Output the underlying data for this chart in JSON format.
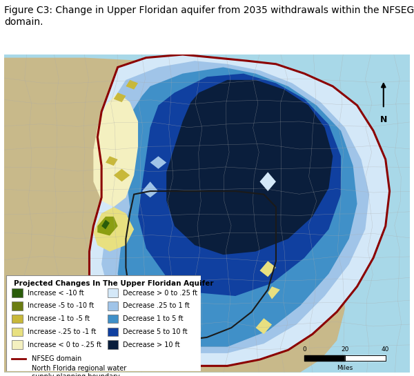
{
  "title": "Figure C3: Change in Upper Floridan aquifer from 2035 withdrawals within the NFSEG\ndomain.",
  "title_fontsize": 10.0,
  "title_fontweight": "normal",
  "legend_title": "Projected Changes In The Upper Floridan Aquifer",
  "legend_title_fontsize": 7.5,
  "legend_items_left": [
    {
      "label": "Increase < -10 ft",
      "color": "#2a5c0a"
    },
    {
      "label": "Increase -5 to -10 ft",
      "color": "#6b7d12"
    },
    {
      "label": "Increase -1 to -5 ft",
      "color": "#c8b83a"
    },
    {
      "label": "Increase -.25 to -1 ft",
      "color": "#e8e080"
    },
    {
      "label": "Increase < 0 to -.25 ft",
      "color": "#f4f0c0"
    }
  ],
  "legend_items_right": [
    {
      "label": "Decrease > 0 to .25 ft",
      "color": "#d4e8f8"
    },
    {
      "label": "Decrease .25 to 1 ft",
      "color": "#a0c4e8"
    },
    {
      "label": "Decrease 1 to 5 ft",
      "color": "#4090c8"
    },
    {
      "label": "Decrease 5 to 10 ft",
      "color": "#1040a0"
    },
    {
      "label": "Decrease > 10 ft",
      "color": "#0a1e3c"
    }
  ],
  "boundary_items": [
    {
      "label": "NFSEG domain",
      "color": "#8b0000",
      "lw": 2.0
    },
    {
      "label": "North Florida regional water\nsupply planning boundary",
      "color": "#1a1a1a",
      "lw": 1.5
    }
  ],
  "ocean_color": "#a8d8e8",
  "land_color": "#c8b98a",
  "figure_bg": "#ffffff",
  "legend_bg": "#ffffff",
  "legend_edge": "#888888",
  "scalebar_ticks": [
    "0",
    "20",
    "40"
  ],
  "scalebar_label": "Miles",
  "north_label": "N",
  "legend_fontsize": 7.0,
  "bound_fontsize": 7.0
}
